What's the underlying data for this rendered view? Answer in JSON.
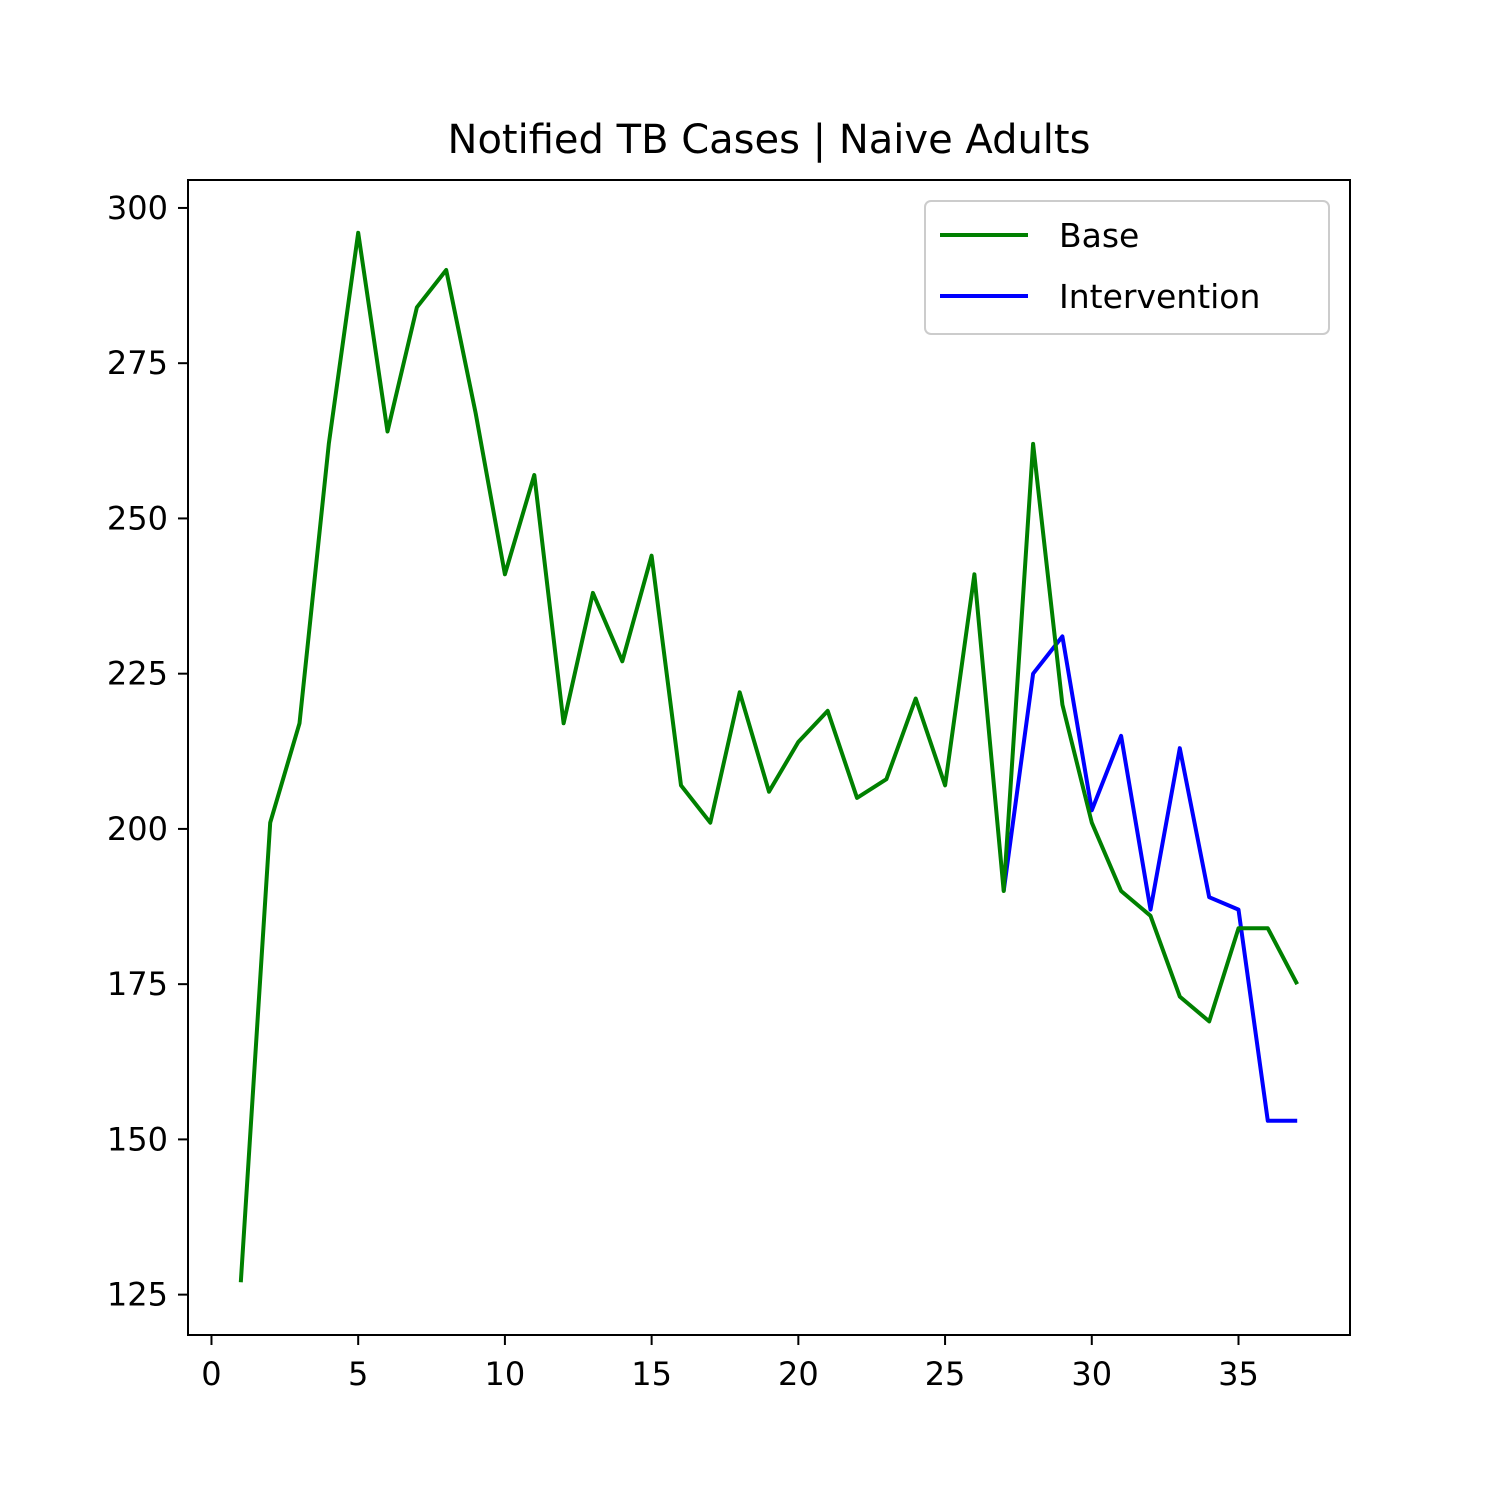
{
  "chart_data": {
    "type": "line",
    "title": "Notified TB Cases | Naive Adults",
    "xlabel": "",
    "ylabel": "",
    "xlim": [
      -0.8,
      38.8
    ],
    "ylim": [
      118.5,
      304.5
    ],
    "xticks": [
      0,
      5,
      10,
      15,
      20,
      25,
      30,
      35
    ],
    "yticks": [
      125,
      150,
      175,
      200,
      225,
      250,
      275,
      300
    ],
    "grid": false,
    "legend_position": "top-right",
    "series": [
      {
        "name": "Base",
        "color": "#008000",
        "x": [
          1,
          2,
          3,
          4,
          5,
          6,
          7,
          8,
          9,
          10,
          11,
          12,
          13,
          14,
          15,
          16,
          17,
          18,
          19,
          20,
          21,
          22,
          23,
          24,
          25,
          26,
          27,
          28,
          29,
          30,
          31,
          32,
          33,
          34,
          35,
          36,
          37
        ],
        "y": [
          127,
          201,
          217,
          262,
          296,
          264,
          284,
          290,
          267,
          241,
          257,
          217,
          238,
          227,
          244,
          207,
          201,
          222,
          206,
          214,
          219,
          205,
          208,
          221,
          207,
          241,
          190,
          262,
          220,
          201,
          190,
          186,
          173,
          169,
          184,
          184,
          175
        ]
      },
      {
        "name": "Intervention",
        "color": "#0000ff",
        "x": [
          27,
          28,
          29,
          30,
          31,
          32,
          33,
          34,
          35,
          36,
          37
        ],
        "y": [
          190,
          225,
          231,
          203,
          215,
          187,
          213,
          189,
          187,
          153,
          153
        ]
      }
    ]
  }
}
